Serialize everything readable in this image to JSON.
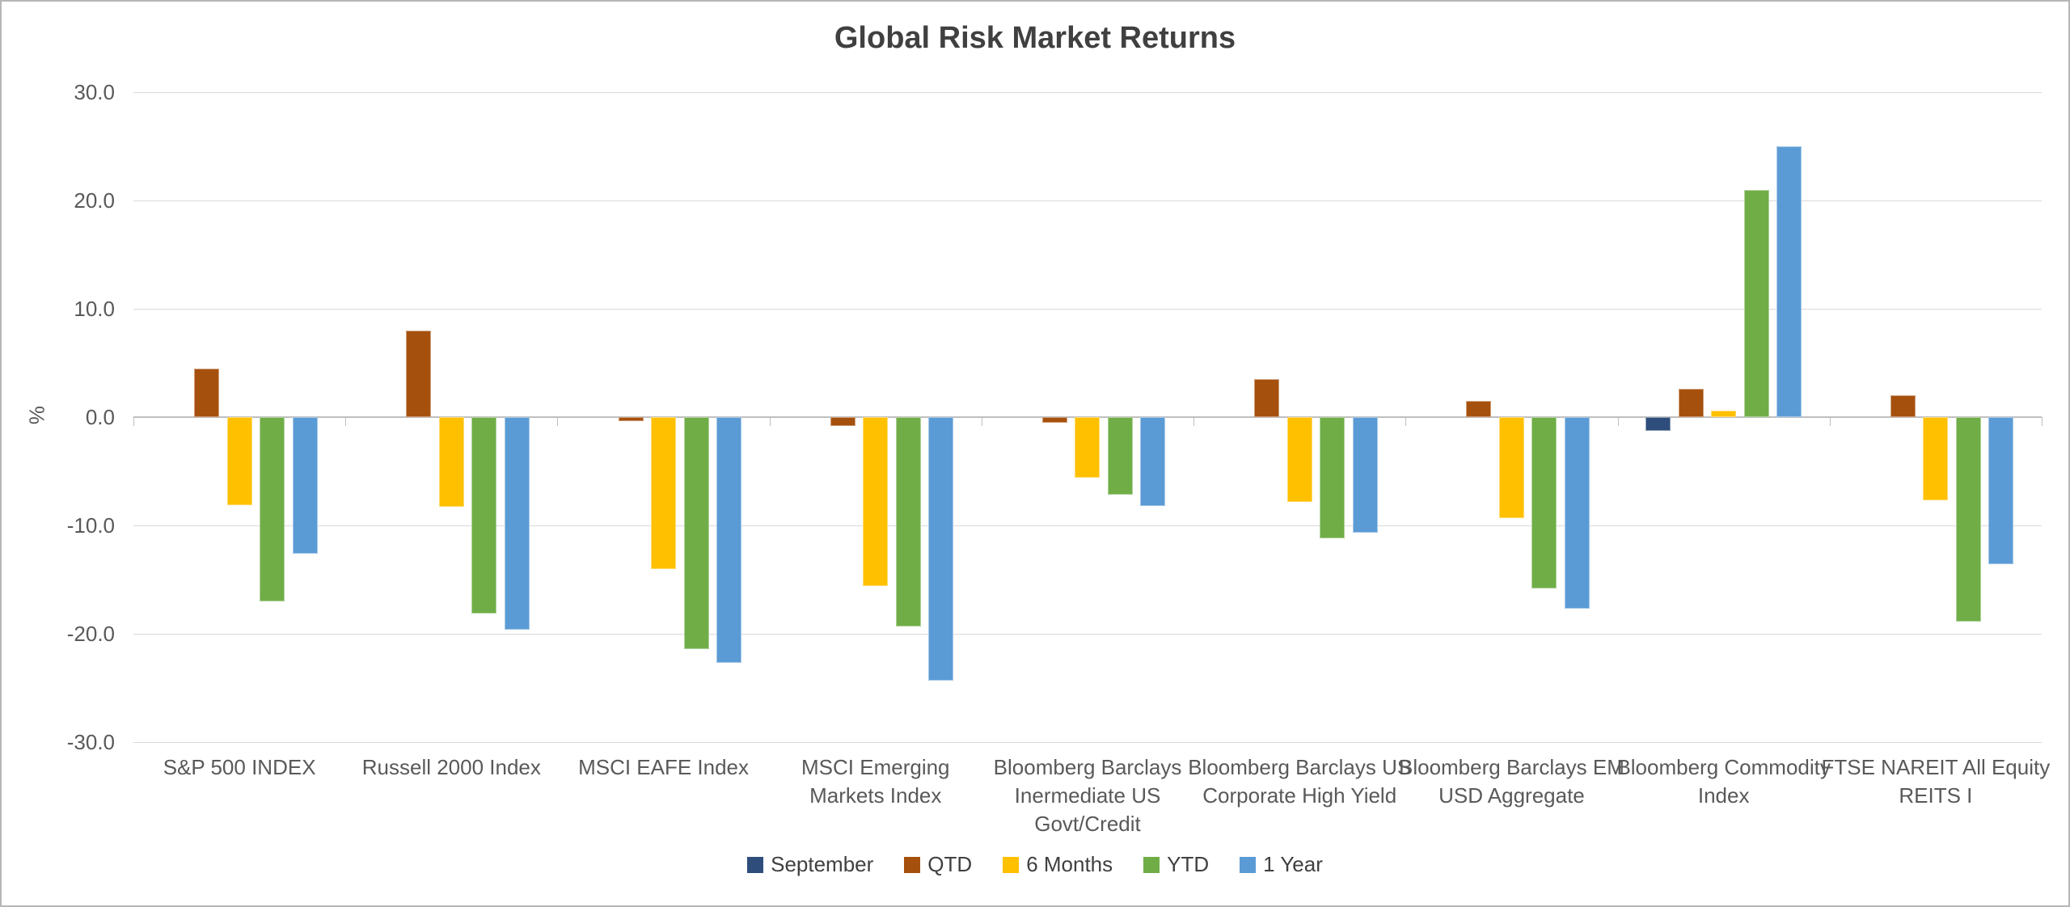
{
  "title": "Global Risk Market Returns",
  "y_axis": {
    "label": "%",
    "tick_labels": [
      "30.0",
      "20.0",
      "10.0",
      "0.0",
      "-10.0",
      "-20.0",
      "-30.0"
    ],
    "tick_values": [
      30,
      20,
      10,
      0,
      -10,
      -20,
      -30
    ]
  },
  "colors": {
    "grid_line": "#D9D9D9",
    "zero_line": "#BFBFBF",
    "axis_text": "#595959",
    "title_text": "#404040",
    "chart_border": "#B7B7B7",
    "background": "#FFFFFF"
  },
  "legend": [
    "September",
    "QTD",
    "6 Months",
    "YTD",
    "1 Year"
  ],
  "chart_data": {
    "type": "bar",
    "title": "Global Risk Market Returns",
    "xlabel": "",
    "ylabel": "%",
    "ylim": [
      -30,
      30
    ],
    "y_step": 10,
    "grid": true,
    "legend_position": "bottom",
    "categories": [
      "S&P 500 INDEX",
      "Russell 2000 Index",
      "MSCI EAFE Index",
      "MSCI Emerging Markets Index",
      "Bloomberg Barclays Inermediate US Govt/Credit",
      "Bloomberg Barclays US Corporate High Yield",
      "Bloomberg Barclays EM USD Aggregate",
      "Bloomberg Commodity Index",
      "FTSE NAREIT All Equity REITS I"
    ],
    "category_label_lines": [
      [
        "S&P 500 INDEX"
      ],
      [
        "Russell 2000 Index"
      ],
      [
        "MSCI EAFE Index"
      ],
      [
        "MSCI Emerging",
        "Markets Index"
      ],
      [
        "Bloomberg Barclays",
        "Inermediate US",
        "Govt/Credit"
      ],
      [
        "Bloomberg Barclays US",
        "Corporate High Yield"
      ],
      [
        "Bloomberg Barclays EM",
        "USD Aggregate"
      ],
      [
        "Bloomberg Commodity",
        "Index"
      ],
      [
        "FTSE NAREIT All Equity",
        "REITS I"
      ]
    ],
    "series": [
      {
        "name": "September",
        "color": "#2E4D7B",
        "values": [
          0,
          0,
          0,
          0,
          0,
          0,
          0,
          -1.3,
          0
        ]
      },
      {
        "name": "QTD",
        "color": "#A6500E",
        "values": [
          4.5,
          8.0,
          -0.4,
          -0.8,
          -0.5,
          3.5,
          1.5,
          2.6,
          2.0
        ]
      },
      {
        "name": "6 Months",
        "color": "#FFC000",
        "values": [
          -8.1,
          -8.3,
          -14.0,
          -15.6,
          -5.6,
          -7.8,
          -9.3,
          0.6,
          -7.7
        ]
      },
      {
        "name": "YTD",
        "color": "#70AD47",
        "values": [
          -17.0,
          -18.1,
          -21.4,
          -19.3,
          -7.2,
          -11.2,
          -15.8,
          21.0,
          -18.9
        ]
      },
      {
        "name": "1 Year",
        "color": "#5B9BD5",
        "values": [
          -12.6,
          -19.6,
          -22.7,
          -24.3,
          -8.2,
          -10.7,
          -17.7,
          25.0,
          -13.6
        ]
      }
    ]
  }
}
